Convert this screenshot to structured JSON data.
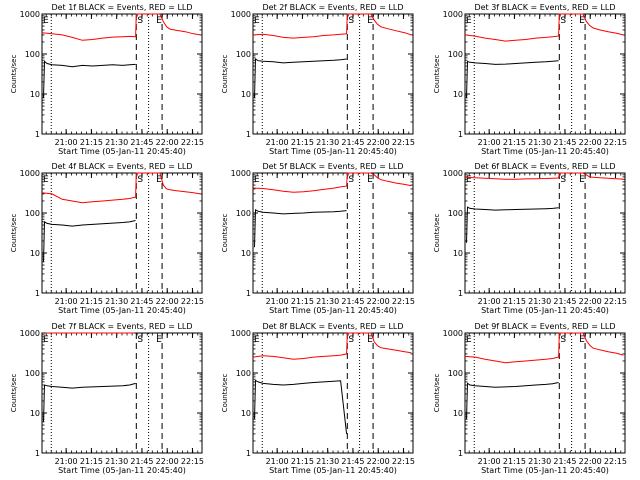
{
  "colors": {
    "events": "#000000",
    "lld": "#ff0000",
    "axes": "#000000"
  },
  "x_tick_labels": [
    "21:00",
    "21:15",
    "21:30",
    "21:45",
    "22:00",
    "22:15"
  ],
  "x_axis_label": "Start Time (05-Jan-11 20:45:40)",
  "y_axis_label": "Counts/sec",
  "y_tick_labels": [
    "1",
    "10",
    "100",
    "1000"
  ],
  "marker_labels": {
    "E_start": "E",
    "S": "S",
    "E_end": "E"
  },
  "chart_data": [
    {
      "type": "line",
      "title": "Det 1f BLACK = Events, RED = LLD",
      "xlabel": "Start Time (05-Jan-11 20:45:40)",
      "ylabel": "Counts/sec",
      "x_unit": "minutes after 20:45:40",
      "xlim": [
        0,
        95
      ],
      "ylim": [
        1,
        1000
      ],
      "y_scale": "log",
      "series": [
        {
          "name": "Events",
          "color": "#000000",
          "x": [
            0.9,
            1.5,
            3.0,
            6.0,
            12,
            18,
            24,
            30,
            36,
            42,
            48,
            52,
            55.6
          ],
          "values": [
            8,
            65,
            58,
            54,
            52,
            48,
            52,
            50,
            52,
            54,
            52,
            54,
            55
          ]
        },
        {
          "name": "LLD",
          "color": "#ff0000",
          "x": [
            0,
            6,
            12,
            18,
            24,
            30,
            36,
            42,
            48,
            52,
            55.6,
            56,
            70,
            72,
            74,
            76,
            80,
            85,
            90,
            94
          ],
          "values": [
            340,
            320,
            300,
            260,
            220,
            230,
            250,
            265,
            270,
            275,
            270,
            1000,
            1000,
            650,
            480,
            420,
            390,
            360,
            320,
            300
          ]
        }
      ],
      "vlines": {
        "dotted": [
          5.5,
          63.3
        ],
        "dashed": [
          56.0,
          71.3
        ]
      }
    },
    {
      "type": "line",
      "title": "Det 2f BLACK = Events, RED = LLD",
      "xlabel": "Start Time (05-Jan-11 20:45:40)",
      "ylabel": "Counts/sec",
      "x_unit": "minutes after 20:45:40",
      "xlim": [
        0,
        95
      ],
      "ylim": [
        1,
        1000
      ],
      "y_scale": "log",
      "series": [
        {
          "name": "Events",
          "color": "#000000",
          "x": [
            0.9,
            1.5,
            3.0,
            6.0,
            12,
            18,
            24,
            30,
            36,
            42,
            48,
            52,
            55.6
          ],
          "values": [
            8,
            75,
            68,
            66,
            64,
            60,
            62,
            64,
            66,
            68,
            70,
            72,
            75
          ]
        },
        {
          "name": "LLD",
          "color": "#ff0000",
          "x": [
            0,
            6,
            12,
            18,
            24,
            30,
            36,
            42,
            48,
            52,
            55.6,
            56,
            70,
            72,
            74,
            76,
            80,
            85,
            90,
            94
          ],
          "values": [
            300,
            310,
            290,
            260,
            250,
            260,
            270,
            290,
            300,
            310,
            320,
            1000,
            1000,
            700,
            550,
            480,
            430,
            380,
            340,
            300
          ]
        }
      ],
      "vlines": {
        "dotted": [
          5.5,
          63.3
        ],
        "dashed": [
          56.0,
          71.3
        ]
      }
    },
    {
      "type": "line",
      "title": "Det 3f BLACK = Events, RED = LLD",
      "xlabel": "Start Time (05-Jan-11 20:45:40)",
      "ylabel": "Counts/sec",
      "x_unit": "minutes after 20:45:40",
      "xlim": [
        0,
        95
      ],
      "ylim": [
        1,
        1000
      ],
      "y_scale": "log",
      "series": [
        {
          "name": "Events",
          "color": "#000000",
          "x": [
            0.9,
            1.5,
            3.0,
            6.0,
            12,
            18,
            24,
            30,
            36,
            42,
            48,
            52,
            55.6
          ],
          "values": [
            8,
            65,
            62,
            60,
            58,
            55,
            56,
            58,
            60,
            62,
            64,
            66,
            68
          ]
        },
        {
          "name": "LLD",
          "color": "#ff0000",
          "x": [
            0,
            6,
            12,
            18,
            24,
            30,
            36,
            42,
            48,
            52,
            55.6,
            56,
            70,
            72,
            74,
            76,
            80,
            85,
            90,
            94
          ],
          "values": [
            300,
            280,
            250,
            230,
            210,
            220,
            230,
            250,
            260,
            270,
            280,
            1000,
            1000,
            650,
            520,
            450,
            400,
            360,
            330,
            300
          ]
        }
      ],
      "vlines": {
        "dotted": [
          5.5,
          63.3
        ],
        "dashed": [
          56.0,
          71.3
        ]
      }
    },
    {
      "type": "line",
      "title": "Det 4f BLACK = Events, RED = LLD",
      "xlabel": "Start Time (05-Jan-11 20:45:40)",
      "ylabel": "Counts/sec",
      "x_unit": "minutes after 20:45:40",
      "xlim": [
        0,
        95
      ],
      "ylim": [
        1,
        1000
      ],
      "y_scale": "log",
      "series": [
        {
          "name": "Events",
          "color": "#000000",
          "x": [
            0.9,
            1.5,
            3.0,
            6.0,
            12,
            18,
            24,
            30,
            36,
            42,
            48,
            52,
            55.6
          ],
          "values": [
            6,
            60,
            55,
            52,
            50,
            47,
            50,
            52,
            54,
            56,
            58,
            60,
            65
          ]
        },
        {
          "name": "LLD",
          "color": "#ff0000",
          "x": [
            0,
            6,
            12,
            18,
            24,
            30,
            36,
            42,
            48,
            52,
            55.6,
            56,
            70,
            72,
            74,
            76,
            80,
            85,
            90,
            94
          ],
          "values": [
            320,
            300,
            220,
            200,
            180,
            190,
            200,
            210,
            220,
            230,
            250,
            1000,
            1000,
            500,
            400,
            380,
            360,
            340,
            320,
            300
          ]
        }
      ],
      "vlines": {
        "dotted": [
          5.5,
          63.3
        ],
        "dashed": [
          56.0,
          71.3
        ]
      }
    },
    {
      "type": "line",
      "title": "Det 5f BLACK = Events, RED = LLD",
      "xlabel": "Start Time (05-Jan-11 20:45:40)",
      "ylabel": "Counts/sec",
      "x_unit": "minutes after 20:45:40",
      "xlim": [
        0,
        95
      ],
      "ylim": [
        1,
        1000
      ],
      "y_scale": "log",
      "series": [
        {
          "name": "Events",
          "color": "#000000",
          "x": [
            0.9,
            1.5,
            3.0,
            6.0,
            12,
            18,
            24,
            30,
            36,
            42,
            48,
            52,
            55.6
          ],
          "values": [
            14,
            120,
            110,
            105,
            100,
            95,
            98,
            100,
            104,
            106,
            108,
            110,
            115
          ]
        },
        {
          "name": "LLD",
          "color": "#ff0000",
          "x": [
            0,
            6,
            12,
            18,
            24,
            30,
            36,
            42,
            48,
            52,
            55.6,
            56,
            70,
            72,
            74,
            76,
            80,
            85,
            90,
            94
          ],
          "values": [
            420,
            410,
            380,
            350,
            330,
            340,
            360,
            390,
            420,
            450,
            470,
            1000,
            1000,
            900,
            750,
            680,
            620,
            560,
            520,
            480
          ]
        }
      ],
      "vlines": {
        "dotted": [
          5.5,
          63.3
        ],
        "dashed": [
          56.0,
          71.3
        ]
      }
    },
    {
      "type": "line",
      "title": "Det 6f BLACK = Events, RED = LLD",
      "xlabel": "Start Time (05-Jan-11 20:45:40)",
      "ylabel": "Counts/sec",
      "x_unit": "minutes after 20:45:40",
      "xlim": [
        0,
        95
      ],
      "ylim": [
        1,
        1000
      ],
      "y_scale": "log",
      "series": [
        {
          "name": "Events",
          "color": "#000000",
          "x": [
            0.9,
            1.5,
            3.0,
            6.0,
            12,
            18,
            24,
            30,
            36,
            42,
            48,
            52,
            55.6
          ],
          "values": [
            18,
            140,
            130,
            126,
            122,
            118,
            120,
            122,
            124,
            126,
            128,
            130,
            135
          ]
        },
        {
          "name": "LLD",
          "color": "#ff0000",
          "x": [
            0,
            6,
            12,
            18,
            24,
            30,
            36,
            42,
            48,
            52,
            55.6,
            56,
            70,
            72,
            74,
            76,
            80,
            85,
            90,
            94
          ],
          "values": [
            780,
            760,
            740,
            720,
            700,
            700,
            710,
            720,
            730,
            740,
            750,
            1000,
            1000,
            900,
            800,
            780,
            760,
            740,
            720,
            700
          ]
        }
      ],
      "vlines": {
        "dotted": [
          5.5,
          63.3
        ],
        "dashed": [
          56.0,
          71.3
        ]
      }
    },
    {
      "type": "line",
      "title": "Det 7f BLACK = Events, RED = LLD",
      "xlabel": "Start Time (05-Jan-11 20:45:40)",
      "ylabel": "Counts/sec",
      "x_unit": "minutes after 20:45:40",
      "xlim": [
        0,
        95
      ],
      "ylim": [
        1,
        1000
      ],
      "y_scale": "log",
      "series": [
        {
          "name": "Events",
          "color": "#000000",
          "x": [
            0.9,
            1.5,
            3.0,
            6.0,
            12,
            18,
            24,
            30,
            36,
            42,
            48,
            52,
            55.6
          ],
          "values": [
            6,
            50,
            48,
            46,
            44,
            42,
            44,
            45,
            46,
            47,
            48,
            50,
            55
          ]
        },
        {
          "name": "LLD",
          "color": "#ff0000",
          "x": [
            2,
            10,
            15,
            25,
            35,
            45,
            55
          ],
          "values": [
            1000,
            1000,
            1000,
            1000,
            1000,
            1000,
            1000
          ]
        }
      ],
      "vlines": {
        "dotted": [
          5.5,
          63.3
        ],
        "dashed": [
          56.0,
          71.3
        ]
      }
    },
    {
      "type": "line",
      "title": "Det 8f BLACK = Events, RED = LLD",
      "xlabel": "Start Time (05-Jan-11 20:45:40)",
      "ylabel": "Counts/sec",
      "x_unit": "minutes after 20:45:40",
      "xlim": [
        0,
        95
      ],
      "ylim": [
        1,
        1000
      ],
      "y_scale": "log",
      "series": [
        {
          "name": "Events",
          "color": "#000000",
          "x": [
            0.9,
            1.5,
            3.0,
            6.0,
            12,
            18,
            24,
            30,
            36,
            42,
            48,
            52,
            55.6
          ],
          "values": [
            7,
            65,
            60,
            55,
            52,
            50,
            52,
            55,
            58,
            60,
            62,
            64,
            3
          ]
        },
        {
          "name": "LLD",
          "color": "#ff0000",
          "x": [
            0,
            6,
            12,
            18,
            24,
            30,
            36,
            42,
            48,
            52,
            55.6,
            56,
            70,
            72,
            74,
            76,
            80,
            85,
            90,
            94
          ],
          "values": [
            250,
            270,
            260,
            240,
            220,
            230,
            250,
            260,
            270,
            280,
            300,
            1000,
            1000,
            600,
            480,
            430,
            400,
            370,
            340,
            320
          ]
        }
      ],
      "vlines": {
        "dotted": [
          5.5,
          63.3
        ],
        "dashed": [
          56.0,
          71.3
        ]
      }
    },
    {
      "type": "line",
      "title": "Det 9f BLACK = Events, RED = LLD",
      "xlabel": "Start Time (05-Jan-11 20:45:40)",
      "ylabel": "Counts/sec",
      "x_unit": "minutes after 20:45:40",
      "xlim": [
        0,
        95
      ],
      "ylim": [
        1,
        1000
      ],
      "y_scale": "log",
      "series": [
        {
          "name": "Events",
          "color": "#000000",
          "x": [
            0.9,
            1.5,
            3.0,
            6.0,
            12,
            18,
            24,
            30,
            36,
            42,
            48,
            52,
            55.6
          ],
          "values": [
            7,
            55,
            50,
            48,
            46,
            44,
            45,
            46,
            48,
            50,
            52,
            54,
            58
          ]
        },
        {
          "name": "LLD",
          "color": "#ff0000",
          "x": [
            0,
            6,
            12,
            18,
            24,
            30,
            36,
            42,
            48,
            52,
            55.6,
            56,
            70,
            72,
            74,
            76,
            80,
            85,
            90,
            94
          ],
          "values": [
            260,
            250,
            220,
            200,
            180,
            190,
            200,
            210,
            220,
            230,
            250,
            1000,
            1000,
            650,
            500,
            420,
            380,
            340,
            310,
            280
          ]
        }
      ],
      "vlines": {
        "dotted": [
          5.5,
          63.3
        ],
        "dashed": [
          56.0,
          71.3
        ]
      }
    }
  ]
}
